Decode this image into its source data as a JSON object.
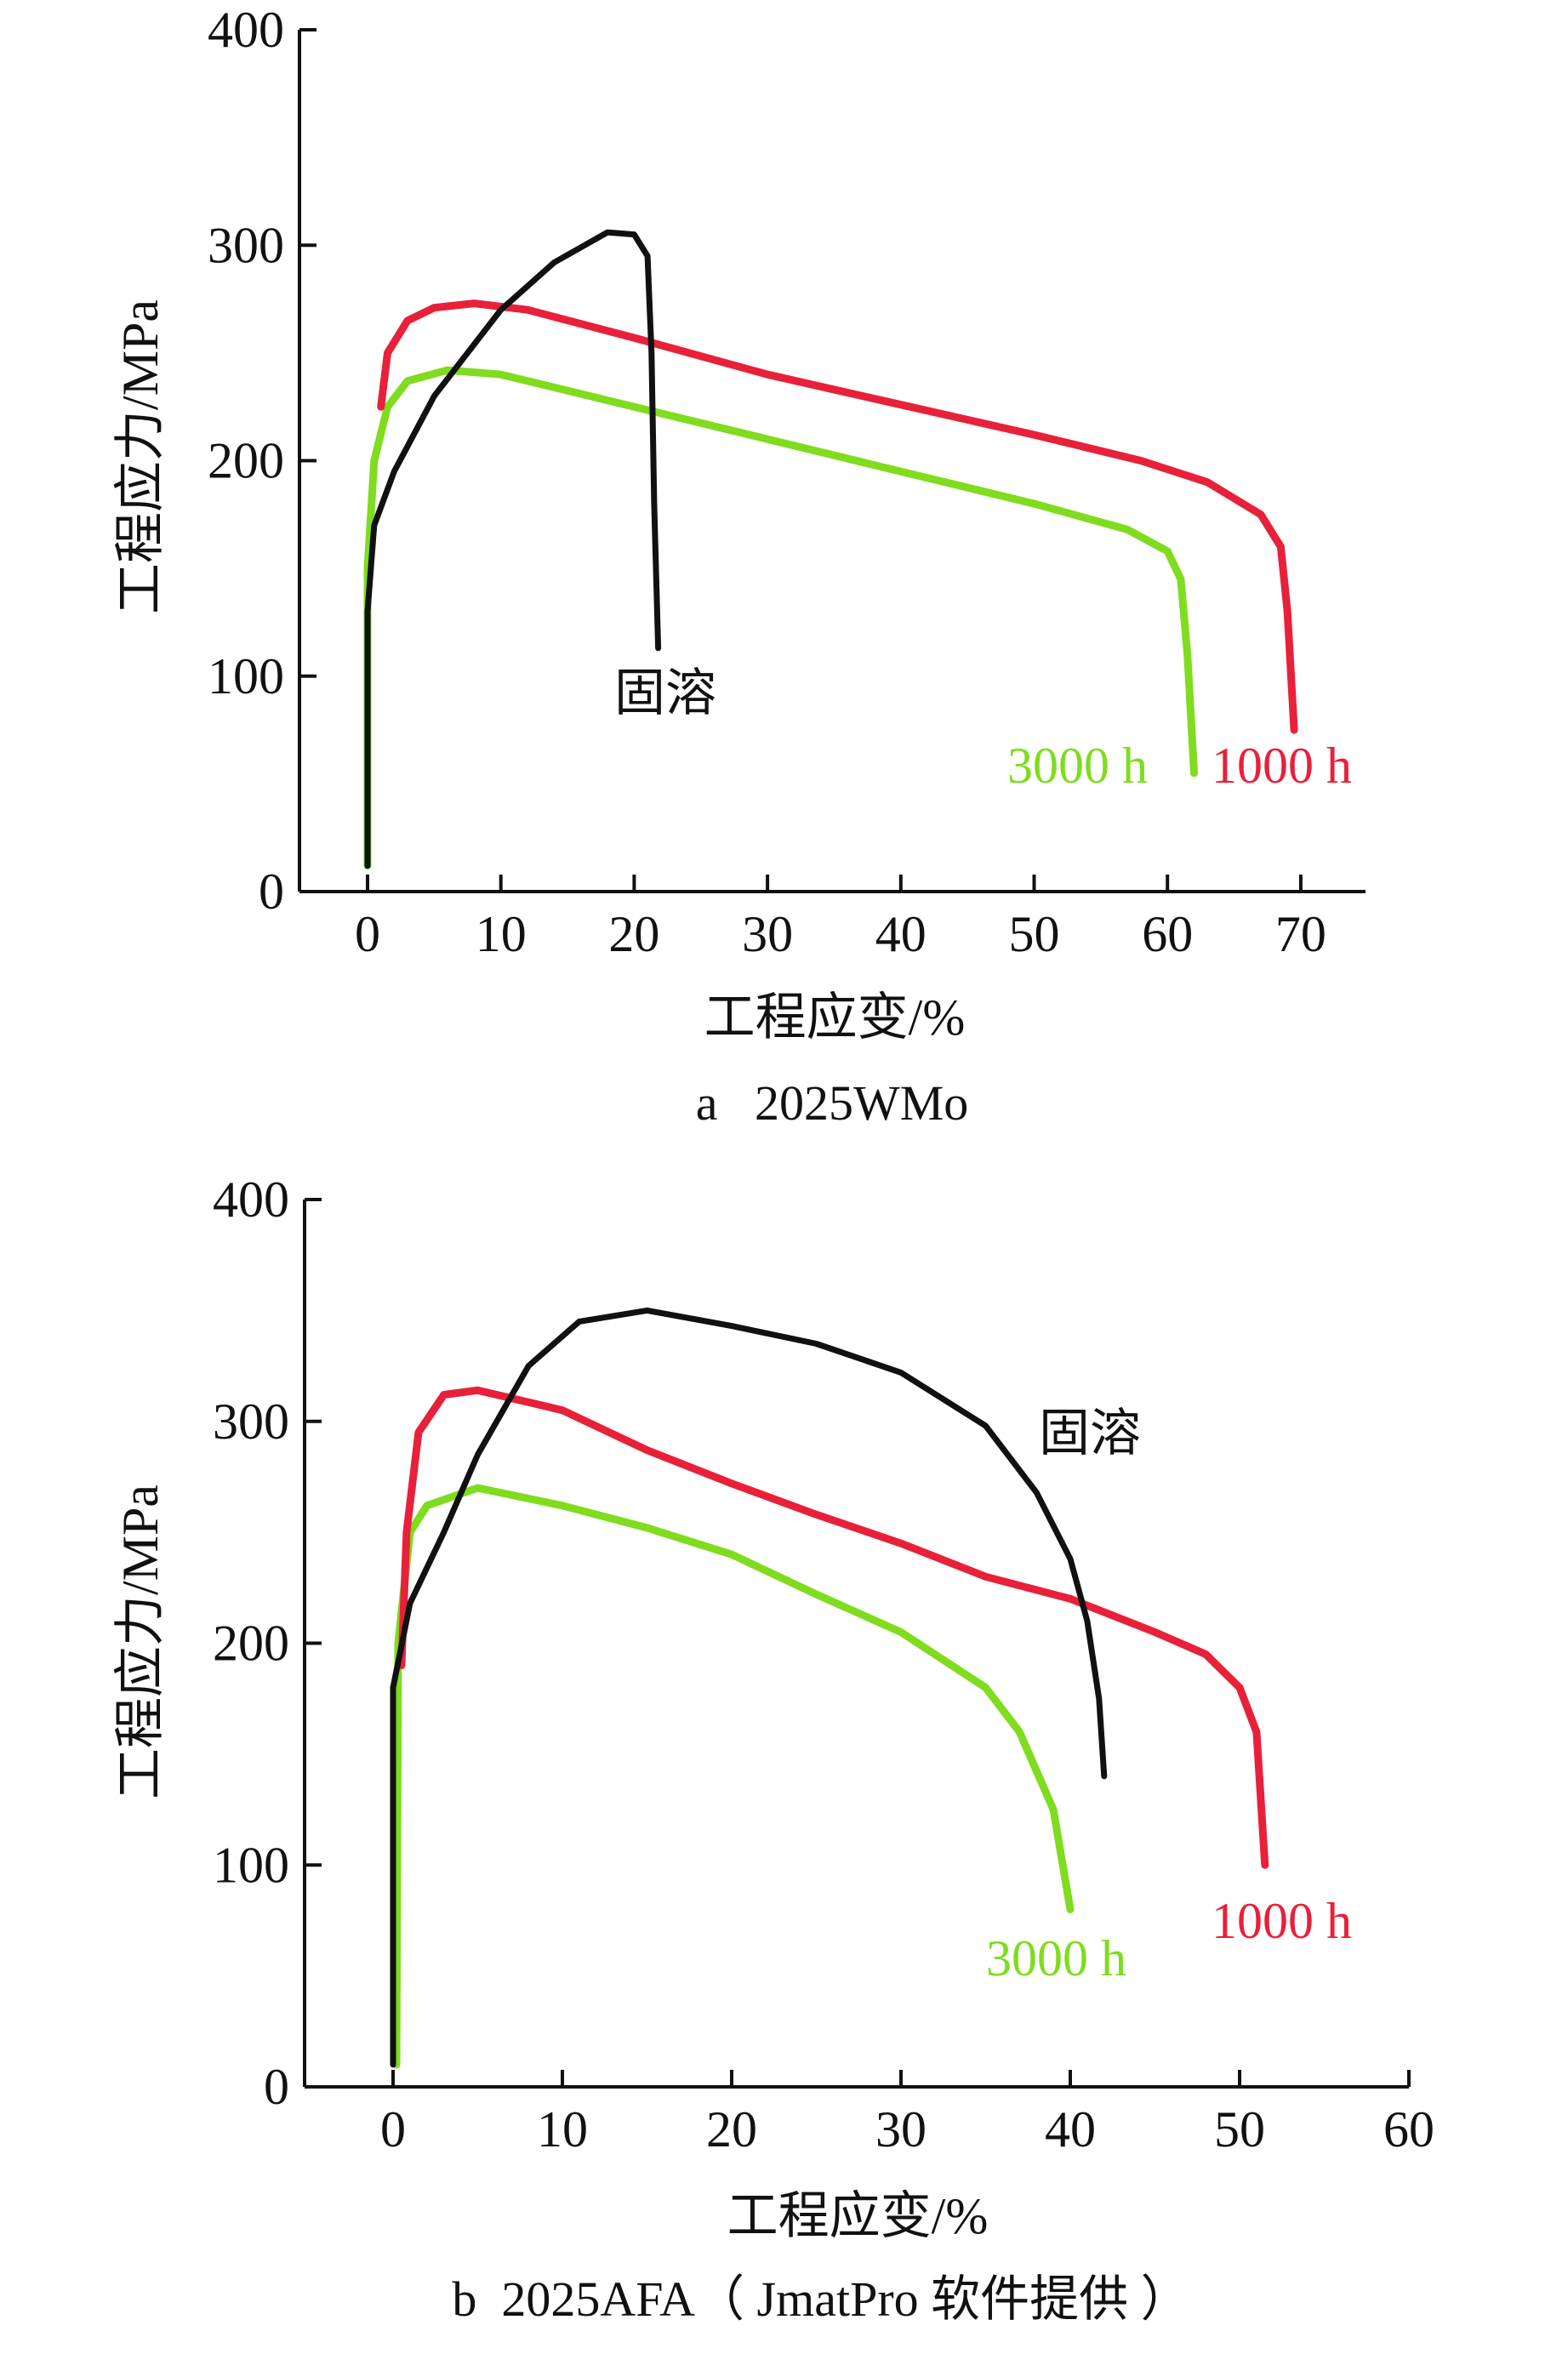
{
  "chart_data": [
    {
      "type": "line",
      "caption": "a   2025WMo",
      "xlabel": "工程应变/%",
      "ylabel": "工程应力/MPa",
      "xlim": [
        -5,
        75
      ],
      "ylim": [
        0,
        400
      ],
      "xticks": [
        0,
        10,
        20,
        30,
        40,
        50,
        60,
        70
      ],
      "yticks": [
        0,
        100,
        200,
        300,
        400
      ],
      "grid": false,
      "series": [
        {
          "name": "固溶",
          "color": "#111111",
          "x": [
            0,
            0,
            0.5,
            2,
            5,
            10,
            14,
            18,
            20,
            21,
            21.3,
            21.5,
            21.8
          ],
          "y": [
            12,
            130,
            170,
            195,
            230,
            270,
            292,
            306,
            305,
            295,
            250,
            180,
            113
          ]
        },
        {
          "name": "1000 h",
          "color": "#e8203a",
          "x": [
            1,
            1.5,
            3,
            5,
            8,
            12,
            20,
            30,
            40,
            50,
            58,
            63,
            67,
            68.5,
            69,
            69.5
          ],
          "y": [
            225,
            250,
            265,
            271,
            273,
            270,
            257,
            240,
            226,
            212,
            200,
            190,
            175,
            160,
            130,
            75
          ]
        },
        {
          "name": "3000 h",
          "color": "#7fdc1e",
          "x": [
            0,
            0,
            0.5,
            1.5,
            3,
            6,
            10,
            20,
            30,
            40,
            50,
            57,
            60,
            61,
            61.5,
            62
          ],
          "y": [
            12,
            150,
            200,
            225,
            237,
            242,
            240,
            225,
            210,
            195,
            180,
            168,
            158,
            145,
            110,
            55
          ]
        }
      ]
    },
    {
      "type": "line",
      "caption": "b  2025AFA（ JmatPro 软件提供 ）",
      "xlabel": "工程应变/%",
      "ylabel": "工程应力/MPa",
      "xlim": [
        -5,
        60
      ],
      "ylim": [
        0,
        400
      ],
      "xticks": [
        0,
        10,
        20,
        30,
        40,
        50,
        60
      ],
      "yticks": [
        0,
        100,
        200,
        300,
        400
      ],
      "grid": false,
      "series": [
        {
          "name": "固溶",
          "color": "#111111",
          "x": [
            0,
            0,
            1,
            3,
            5,
            8,
            11,
            15,
            20,
            25,
            30,
            35,
            38,
            40,
            41,
            41.7,
            42
          ],
          "y": [
            10,
            180,
            218,
            250,
            285,
            325,
            345,
            350,
            343,
            335,
            322,
            298,
            268,
            238,
            210,
            175,
            140
          ]
        },
        {
          "name": "1000 h",
          "color": "#e8203a",
          "x": [
            0.5,
            0.8,
            1.5,
            3,
            5,
            10,
            15,
            20,
            25,
            30,
            35,
            40,
            45,
            48,
            50,
            51,
            51.5
          ],
          "y": [
            190,
            250,
            295,
            312,
            314,
            305,
            287,
            272,
            258,
            245,
            230,
            220,
            205,
            195,
            180,
            160,
            100
          ]
        },
        {
          "name": "3000 h",
          "color": "#7fdc1e",
          "x": [
            0.2,
            0.3,
            1,
            2,
            5,
            10,
            15,
            20,
            25,
            30,
            35,
            37,
            39,
            40
          ],
          "y": [
            10,
            200,
            250,
            262,
            270,
            262,
            252,
            240,
            222,
            205,
            180,
            160,
            125,
            80
          ]
        }
      ]
    }
  ]
}
